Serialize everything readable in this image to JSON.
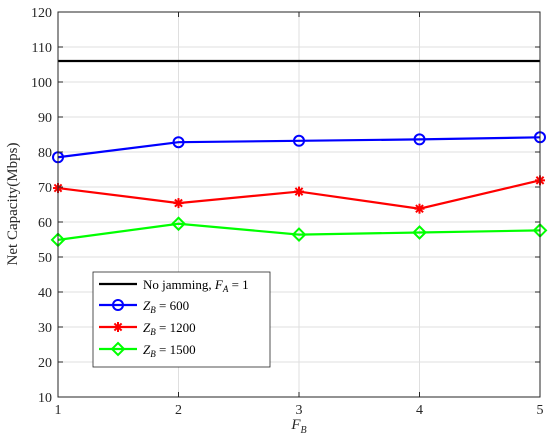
{
  "chart_data": {
    "type": "line",
    "xlabel": "F_B",
    "ylabel": "Net Capacity(Mbps)",
    "x": [
      1,
      2,
      3,
      4,
      5
    ],
    "xlim": [
      1,
      5
    ],
    "ylim": [
      10,
      120
    ],
    "xticks": [
      "1",
      "2",
      "3",
      "4",
      "5"
    ],
    "yticks": [
      "10",
      "20",
      "30",
      "40",
      "50",
      "60",
      "70",
      "80",
      "90",
      "100",
      "110",
      "120"
    ],
    "grid": true,
    "legend_position": "lower-left",
    "series": [
      {
        "name": "No jamming, F_A = 1",
        "values": [
          106,
          106,
          106,
          106,
          106
        ],
        "color": "#000000",
        "marker": "none"
      },
      {
        "name": "Z_B = 600",
        "values": [
          78.5,
          82.8,
          83.2,
          83.6,
          84.2
        ],
        "color": "#0000ff",
        "marker": "circle"
      },
      {
        "name": "Z_B = 1200",
        "values": [
          69.7,
          65.4,
          68.7,
          63.8,
          71.9
        ],
        "color": "#ff0000",
        "marker": "asterisk"
      },
      {
        "name": "Z_B = 1500",
        "values": [
          54.9,
          59.5,
          56.4,
          57.0,
          57.6
        ],
        "color": "#00ff00",
        "marker": "diamond"
      }
    ]
  }
}
